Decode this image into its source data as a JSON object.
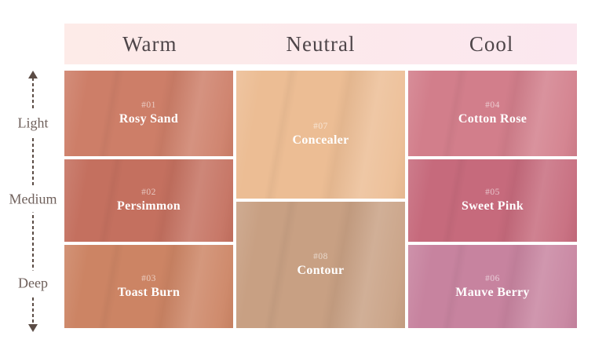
{
  "header": {
    "columns": [
      {
        "label": "Warm"
      },
      {
        "label": "Neutral"
      },
      {
        "label": "Cool"
      }
    ]
  },
  "axis": {
    "labels": [
      {
        "text": "Light"
      },
      {
        "text": "Medium"
      },
      {
        "text": "Deep"
      }
    ]
  },
  "swatches": [
    {
      "number": "#01",
      "name": "Rosy Sand",
      "color": "#cd7e68",
      "tone": "Warm",
      "depth": "Light"
    },
    {
      "number": "#02",
      "name": "Persimmon",
      "color": "#c4705f",
      "tone": "Warm",
      "depth": "Medium"
    },
    {
      "number": "#03",
      "name": "Toast Burn",
      "color": "#cc8464",
      "tone": "Warm",
      "depth": "Deep"
    },
    {
      "number": "#07",
      "name": "Concealer",
      "color": "#ecbd94",
      "tone": "Neutral",
      "depth": "Light"
    },
    {
      "number": "#08",
      "name": "Contour",
      "color": "#c8a083",
      "tone": "Neutral",
      "depth": "Deep"
    },
    {
      "number": "#04",
      "name": "Cotton Rose",
      "color": "#d27e8b",
      "tone": "Cool",
      "depth": "Light"
    },
    {
      "number": "#05",
      "name": "Sweet Pink",
      "color": "#c66a7c",
      "tone": "Cool",
      "depth": "Medium"
    },
    {
      "number": "#06",
      "name": "Mauve Berry",
      "color": "#c7839f",
      "tone": "Cool",
      "depth": "Deep"
    }
  ],
  "colors": {
    "header_bg_left": "#fdebe8",
    "header_bg_right": "#fbe7ef",
    "header_text": "#4e4549",
    "axis_line": "#5b4c45",
    "axis_text": "#6f605b",
    "swatch_number_text": "#ffffff99",
    "swatch_name_text": "#ffffff"
  }
}
